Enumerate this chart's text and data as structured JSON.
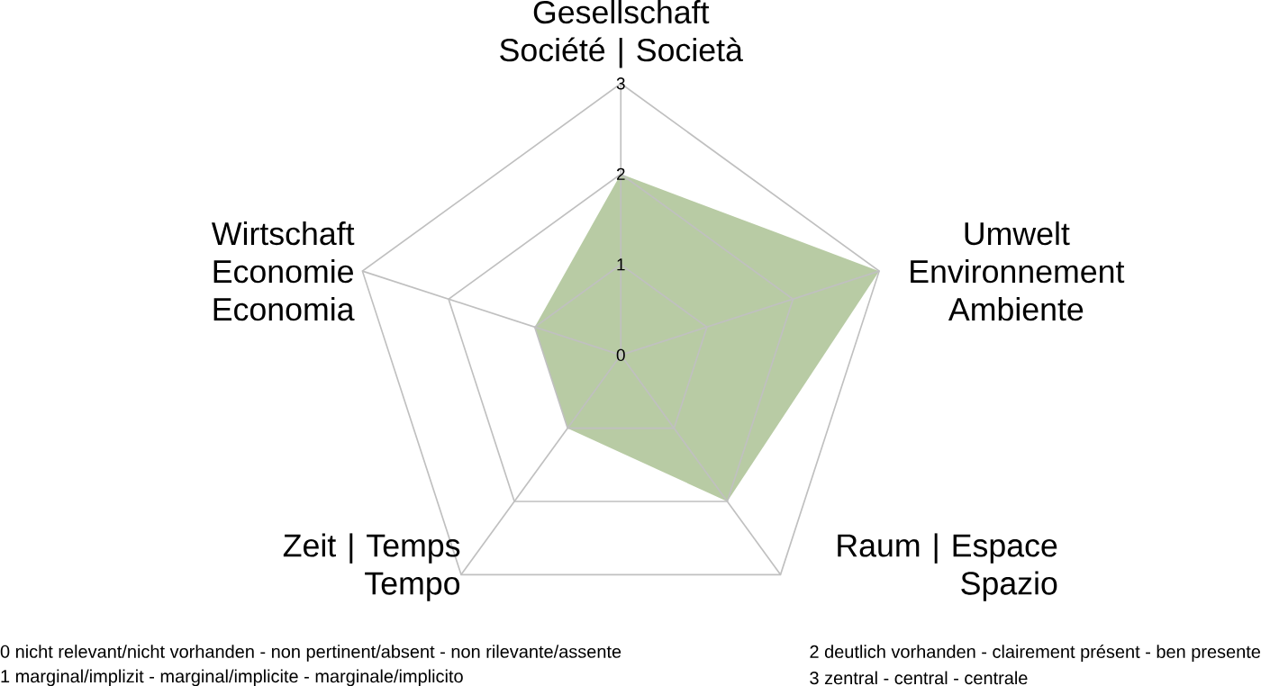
{
  "chart_data": {
    "type": "radar",
    "categories": [
      "Gesellschaft\nSociété | Società",
      "Umwelt\nEnvironnement\nAmbiente",
      "Raum | Espace\nSpazio",
      "Zeit | Temps\nTempo",
      "Wirtschaft\nEconomie\nEconomia"
    ],
    "series": [
      {
        "color": "#b8cba4",
        "values": [
          2,
          3,
          2,
          1,
          1
        ]
      }
    ],
    "ylim": [
      0,
      3
    ],
    "yticks": [
      0,
      1,
      2,
      3
    ],
    "grid": true,
    "annotations": [
      "0 nicht relevant/nicht vorhanden -  non pertinent/absent - non rilevante/assente",
      "1 marginal/implizit - marginal/implicite - marginale/implicito",
      "2 deutlich vorhanden - clairement présent - ben presente",
      "3 zentral -  central - centrale"
    ]
  }
}
